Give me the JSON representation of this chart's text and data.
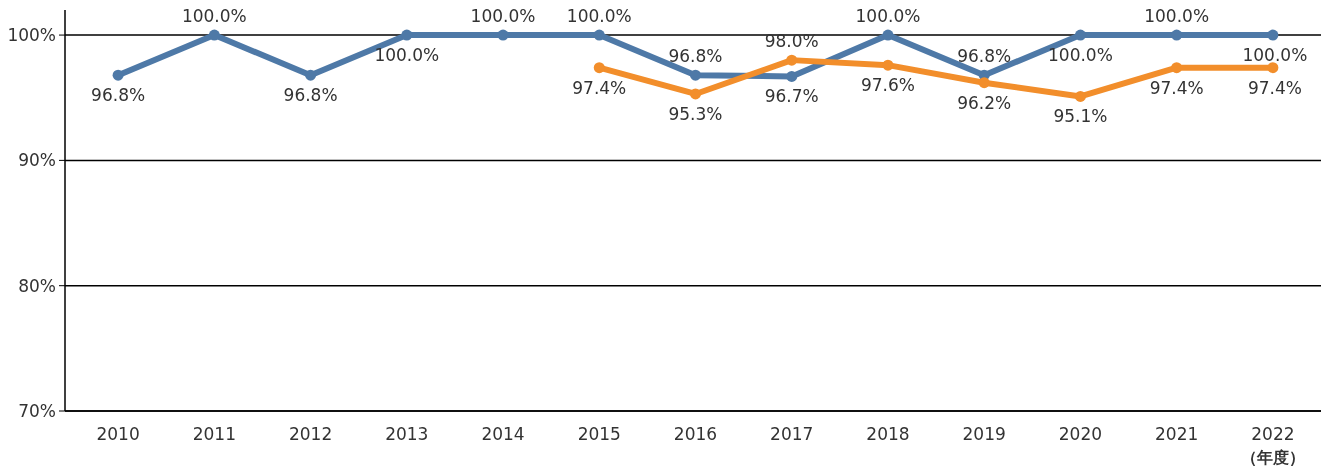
{
  "chart_data": {
    "type": "line",
    "xlabel": "（年度）",
    "categories": [
      "2010",
      "2011",
      "2012",
      "2013",
      "2014",
      "2015",
      "2016",
      "2017",
      "2018",
      "2019",
      "2020",
      "2021",
      "2022"
    ],
    "series": [
      {
        "color": "#4e79a7",
        "values": [
          96.8,
          100.0,
          96.8,
          100.0,
          100.0,
          100.0,
          96.8,
          96.7,
          100.0,
          96.8,
          100.0,
          100.0,
          100.0
        ],
        "value_labels": [
          "96.8%",
          "100.0%",
          "96.8%",
          "100.0%",
          "100.0%",
          "100.0%",
          "96.8%",
          "96.7%",
          "100.0%",
          "96.8%",
          "100.0%",
          "100.0%",
          "100.0%"
        ]
      },
      {
        "color": "#f28e2b",
        "values": [
          null,
          null,
          null,
          null,
          null,
          97.4,
          95.3,
          98.0,
          97.6,
          96.2,
          95.1,
          97.4,
          97.4
        ],
        "value_labels": [
          null,
          null,
          null,
          null,
          null,
          "97.4%",
          "95.3%",
          "98.0%",
          "97.6%",
          "96.2%",
          "95.1%",
          "97.4%",
          "97.4%"
        ]
      }
    ],
    "ylim": [
      70,
      102
    ],
    "yticks": [
      {
        "value": 70,
        "label": "70%"
      },
      {
        "value": 80,
        "label": "80%"
      },
      {
        "value": 90,
        "label": "90%"
      },
      {
        "value": 100,
        "label": "100%"
      }
    ],
    "grid": "y",
    "marker": "circle",
    "line_style": "solid"
  }
}
